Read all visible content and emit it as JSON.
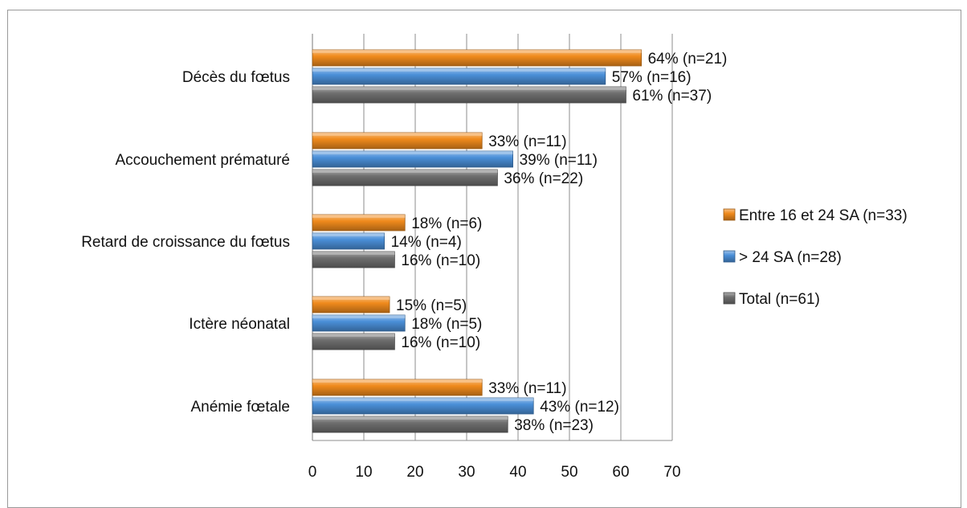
{
  "chart_data": {
    "type": "bar",
    "orientation": "horizontal",
    "title": "",
    "xlabel": "",
    "ylabel": "",
    "xlim": [
      0,
      70
    ],
    "xticks": [
      0,
      10,
      20,
      30,
      40,
      50,
      60,
      70
    ],
    "grid": true,
    "legend_position": "right",
    "categories": [
      "Décès du fœtus",
      "Accouchement prématuré",
      "Retard de croissance du fœtus",
      "Ictère néonatal",
      "Anémie fœtale"
    ],
    "series": [
      {
        "name": "Entre 16 et 24 SA (n=33)",
        "color": "#F08A1C",
        "values": [
          64,
          33,
          18,
          15,
          33
        ],
        "labels": [
          "64% (n=21)",
          "33% (n=11)",
          "18% (n=6)",
          "15% (n=5)",
          "33% (n=11)"
        ]
      },
      {
        "name": "> 24 SA (n=28)",
        "color": "#4A8FD8",
        "values": [
          57,
          39,
          14,
          18,
          43
        ],
        "labels": [
          "57% (n=16)",
          "39% (n=11)",
          "14% (n=4)",
          "18% (n=5)",
          "43% (n=12)"
        ]
      },
      {
        "name": "Total (n=61)",
        "color": "#6E6E6E",
        "values": [
          61,
          36,
          16,
          16,
          38
        ],
        "labels": [
          "61% (n=37)",
          "36% (n=22)",
          "16% (n=10)",
          "16% (n=10)",
          "38% (n=23)"
        ]
      }
    ]
  }
}
